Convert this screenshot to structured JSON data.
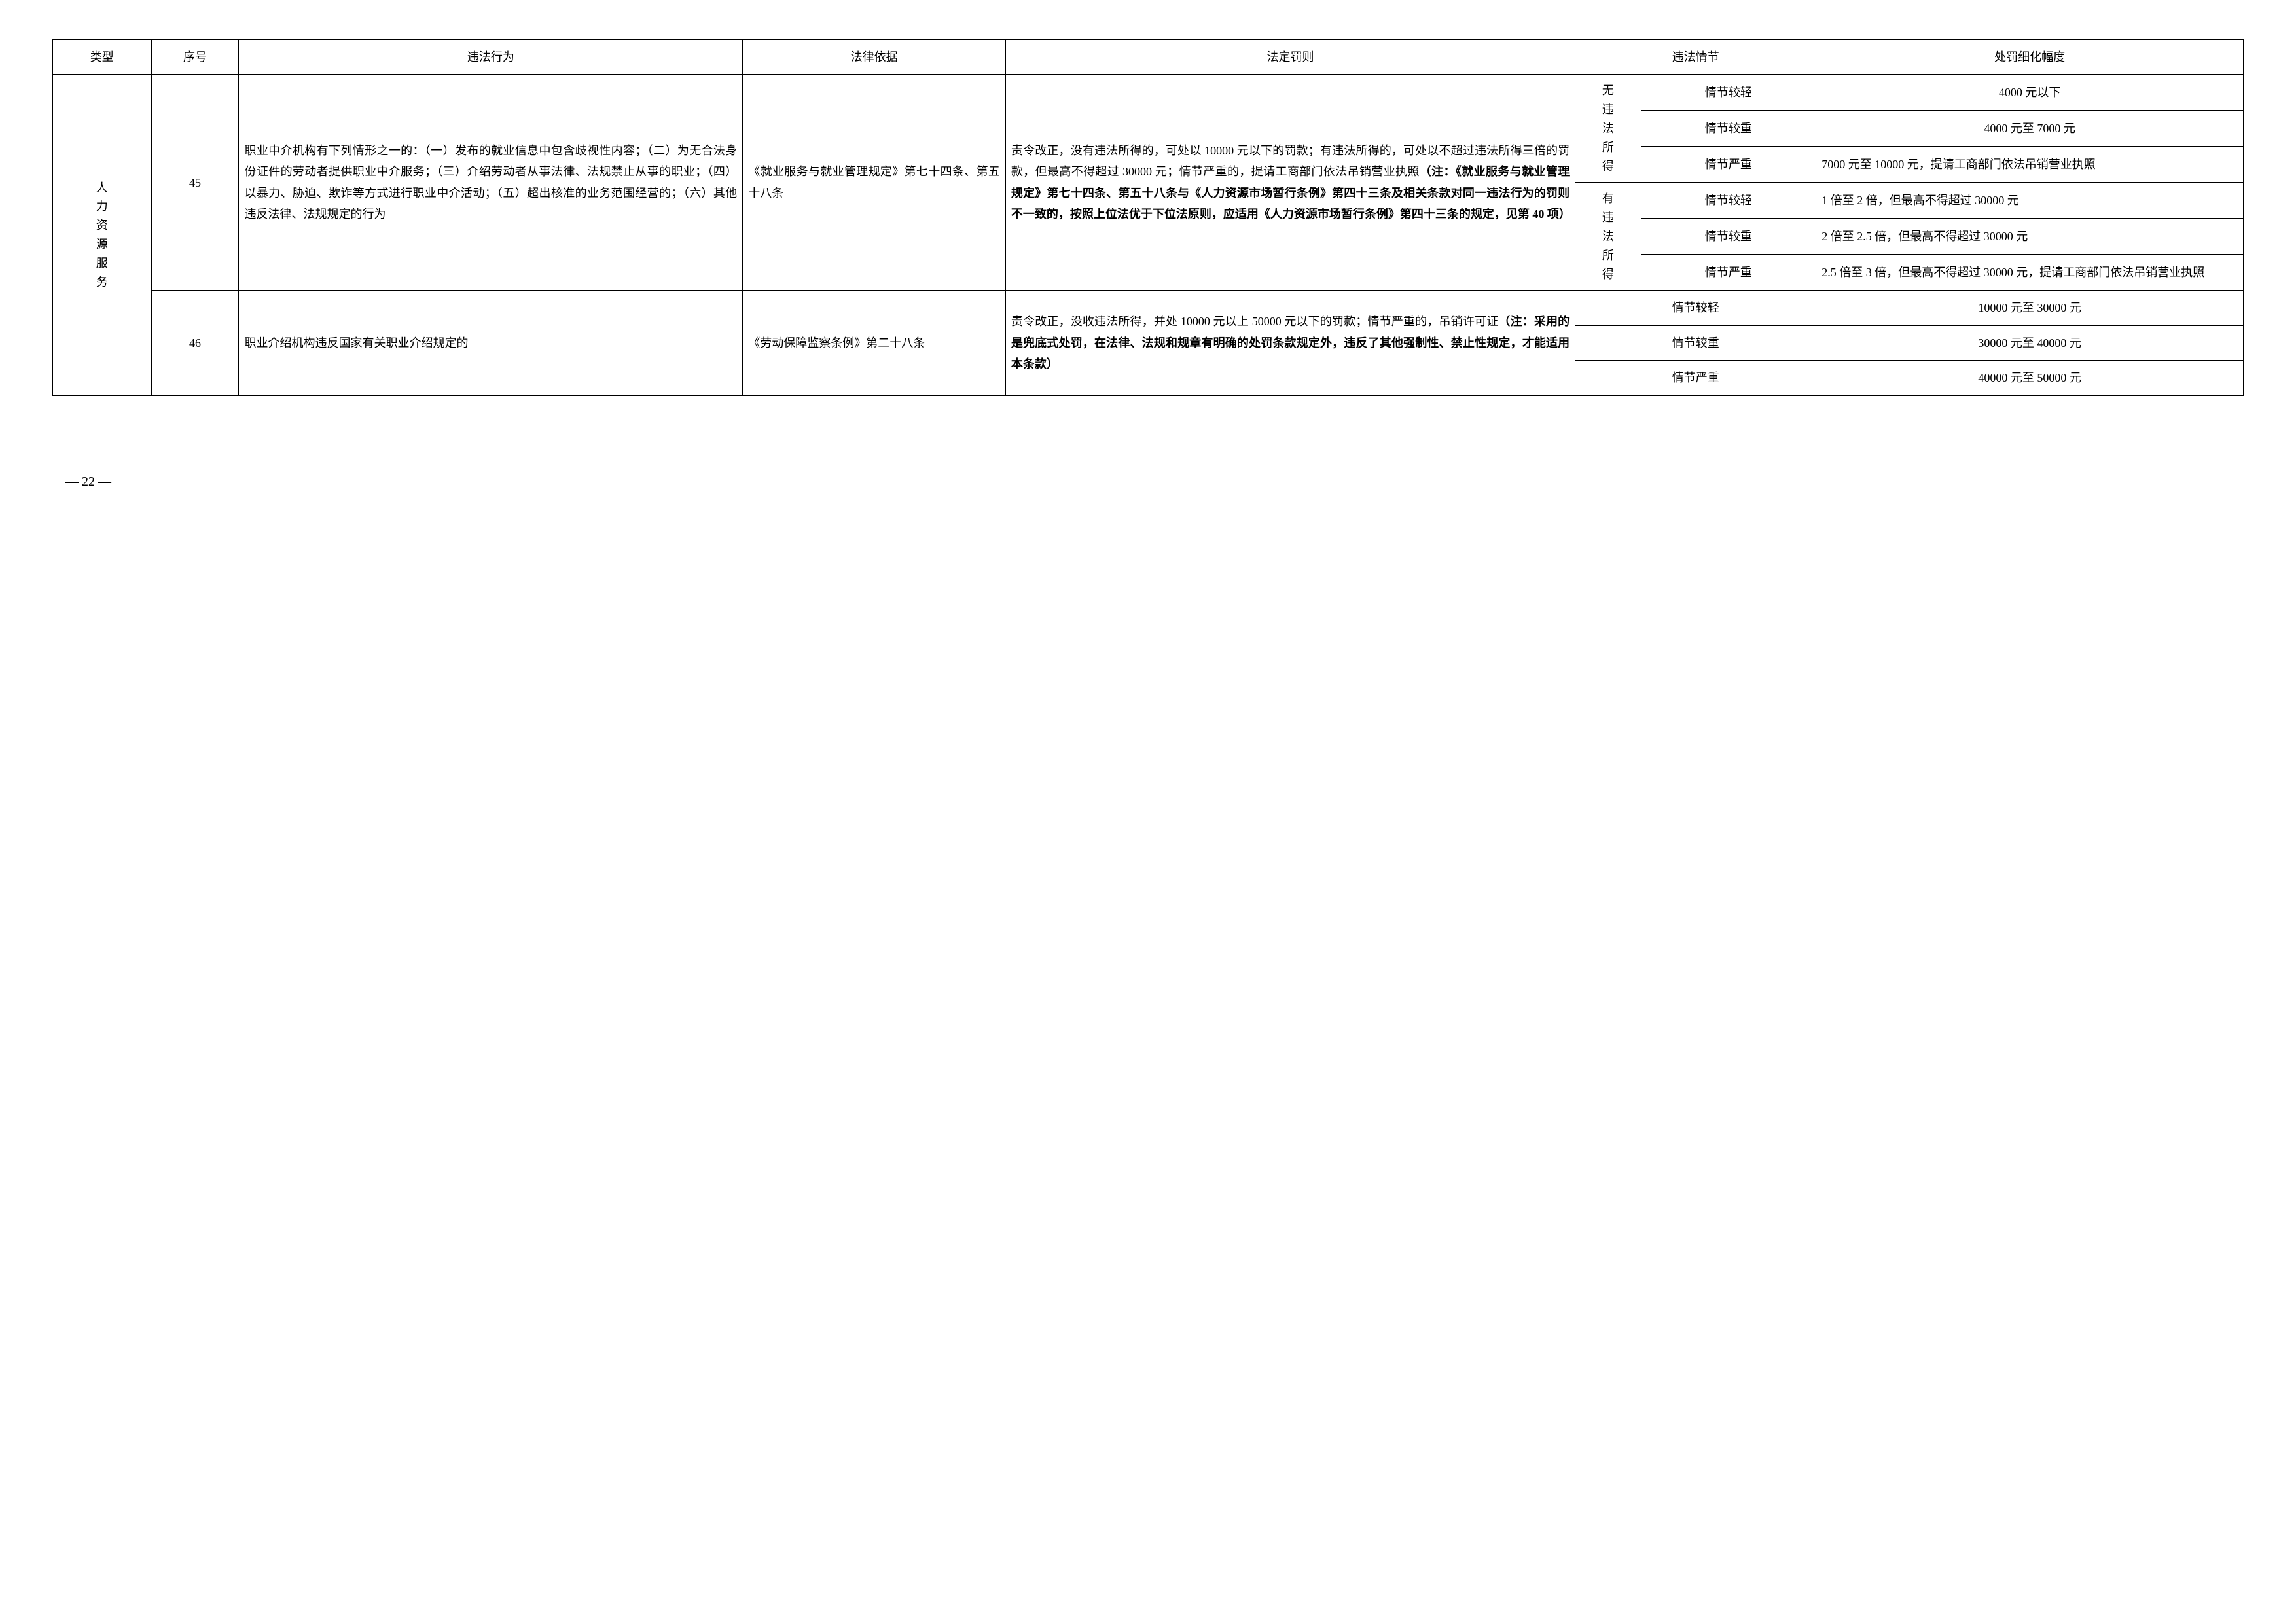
{
  "headers": {
    "type": "类型",
    "seq": "序号",
    "violation": "违法行为",
    "basis": "法律依据",
    "penalty": "法定罚则",
    "circumstance": "违法情节",
    "range": "处罚细化幅度"
  },
  "category": "人力资源服务",
  "rows": [
    {
      "seq": "45",
      "violation": "职业中介机构有下列情形之一的：（一）发布的就业信息中包含歧视性内容；（二）为无合法身份证件的劳动者提供职业中介服务；（三）介绍劳动者从事法律、法规禁止从事的职业；（四）以暴力、胁迫、欺诈等方式进行职业中介活动；（五）超出核准的业务范围经营的；（六）其他违反法律、法规规定的行为",
      "basis": "《就业服务与就业管理规定》第七十四条、第五十八条",
      "penalty_plain": "责令改正，没有违法所得的，可处以 10000 元以下的罚款；有违法所得的，可处以不超过违法所得三倍的罚款，但最高不得超过 30000 元；情节严重的，提请工商部门依法吊销营业执照",
      "penalty_bold": "（注：《就业服务与就业管理规定》第七十四条、第五十八条与《人力资源市场暂行条例》第四十三条及相关条款对同一违法行为的罚则不一致的，按照上位法优于下位法原则，应适用《人力资源市场暂行条例》第四十三条的规定，见第 40 项）",
      "groups": [
        {
          "label": "无违法所得",
          "levels": [
            {
              "level": "情节较轻",
              "range": "4000 元以下"
            },
            {
              "level": "情节较重",
              "range": "4000 元至 7000 元"
            },
            {
              "level": "情节严重",
              "range": "7000 元至 10000 元，提请工商部门依法吊销营业执照"
            }
          ]
        },
        {
          "label": "有违法所得",
          "levels": [
            {
              "level": "情节较轻",
              "range": "1 倍至 2 倍，但最高不得超过 30000 元"
            },
            {
              "level": "情节较重",
              "range": "2 倍至 2.5 倍，但最高不得超过 30000 元"
            },
            {
              "level": "情节严重",
              "range": "2.5 倍至 3 倍，但最高不得超过 30000 元，提请工商部门依法吊销营业执照"
            }
          ]
        }
      ]
    },
    {
      "seq": "46",
      "violation": "职业介绍机构违反国家有关职业介绍规定的",
      "basis": "《劳动保障监察条例》第二十八条",
      "penalty_plain": "责令改正，没收违法所得，并处 10000 元以上 50000 元以下的罚款；情节严重的，吊销许可证",
      "penalty_bold": "（注：采用的是兜底式处罚，在法律、法规和规章有明确的处罚条款规定外，违反了其他强制性、禁止性规定，才能适用本条款）",
      "levels": [
        {
          "level": "情节较轻",
          "range": "10000 元至 30000 元"
        },
        {
          "level": "情节较重",
          "range": "30000 元至 40000 元"
        },
        {
          "level": "情节严重",
          "range": "40000 元至 50000 元"
        }
      ]
    }
  ],
  "page_number": "— 22 —"
}
